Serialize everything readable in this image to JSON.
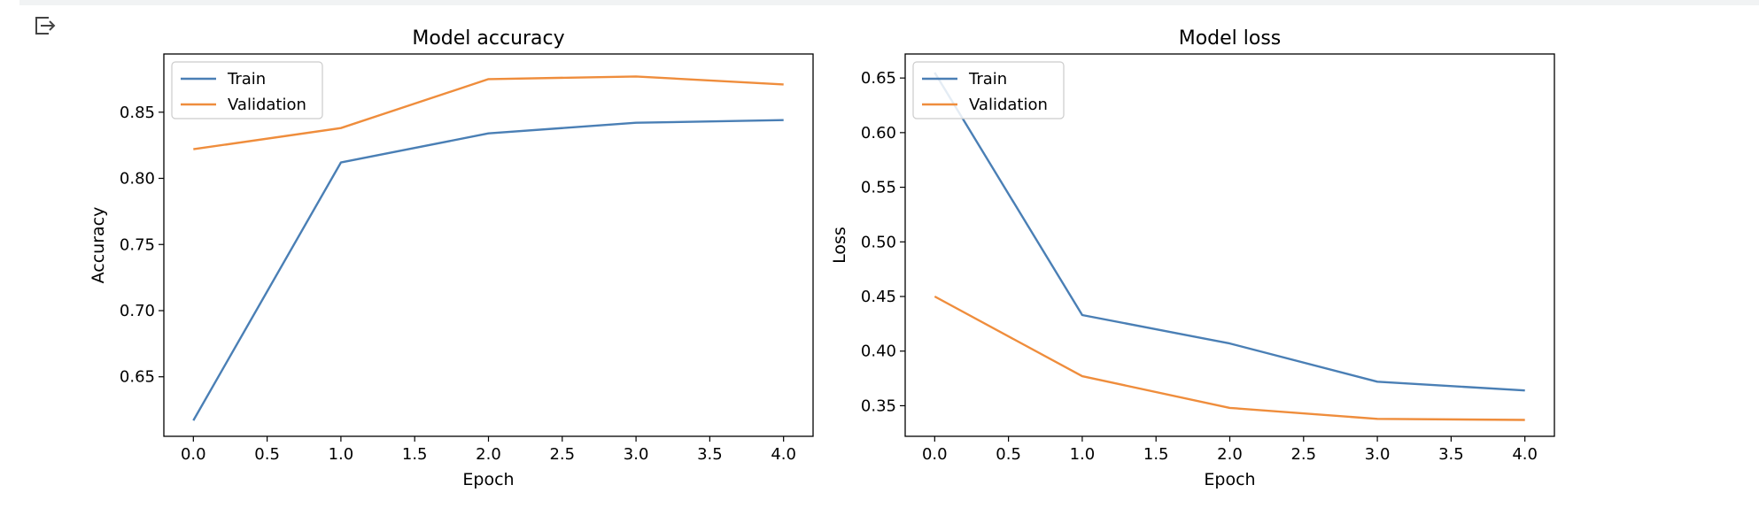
{
  "colors": {
    "train": "#4a7fb5",
    "validation": "#ef8d3c"
  },
  "icons": {
    "output": "output-redirect-icon"
  },
  "chart_data": [
    {
      "type": "line",
      "title": "Model accuracy",
      "xlabel": "Epoch",
      "ylabel": "Accuracy",
      "x": [
        0,
        1,
        2,
        3,
        4
      ],
      "xlim": [
        -0.2,
        4.2
      ],
      "ylim": [
        0.605,
        0.894
      ],
      "xticks": [
        0.0,
        0.5,
        1.0,
        1.5,
        2.0,
        2.5,
        3.0,
        3.5,
        4.0
      ],
      "xtick_labels": [
        "0.0",
        "0.5",
        "1.0",
        "1.5",
        "2.0",
        "2.5",
        "3.0",
        "3.5",
        "4.0"
      ],
      "yticks": [
        0.65,
        0.7,
        0.75,
        0.8,
        0.85
      ],
      "ytick_labels": [
        "0.65",
        "0.70",
        "0.75",
        "0.80",
        "0.85"
      ],
      "legend": "top-left",
      "grid": false,
      "series": [
        {
          "name": "Train",
          "values": [
            0.617,
            0.812,
            0.834,
            0.842,
            0.844
          ]
        },
        {
          "name": "Validation",
          "values": [
            0.822,
            0.838,
            0.875,
            0.877,
            0.871
          ]
        }
      ]
    },
    {
      "type": "line",
      "title": "Model loss",
      "xlabel": "Epoch",
      "ylabel": "Loss",
      "x": [
        0,
        1,
        2,
        3,
        4
      ],
      "xlim": [
        -0.2,
        4.2
      ],
      "ylim": [
        0.322,
        0.672
      ],
      "xticks": [
        0.0,
        0.5,
        1.0,
        1.5,
        2.0,
        2.5,
        3.0,
        3.5,
        4.0
      ],
      "xtick_labels": [
        "0.0",
        "0.5",
        "1.0",
        "1.5",
        "2.0",
        "2.5",
        "3.0",
        "3.5",
        "4.0"
      ],
      "yticks": [
        0.35,
        0.4,
        0.45,
        0.5,
        0.55,
        0.6,
        0.65
      ],
      "ytick_labels": [
        "0.35",
        "0.40",
        "0.45",
        "0.50",
        "0.55",
        "0.60",
        "0.65"
      ],
      "legend": "top-left",
      "grid": false,
      "series": [
        {
          "name": "Train",
          "values": [
            0.655,
            0.433,
            0.407,
            0.372,
            0.364
          ]
        },
        {
          "name": "Validation",
          "values": [
            0.45,
            0.377,
            0.348,
            0.338,
            0.337
          ]
        }
      ]
    }
  ]
}
